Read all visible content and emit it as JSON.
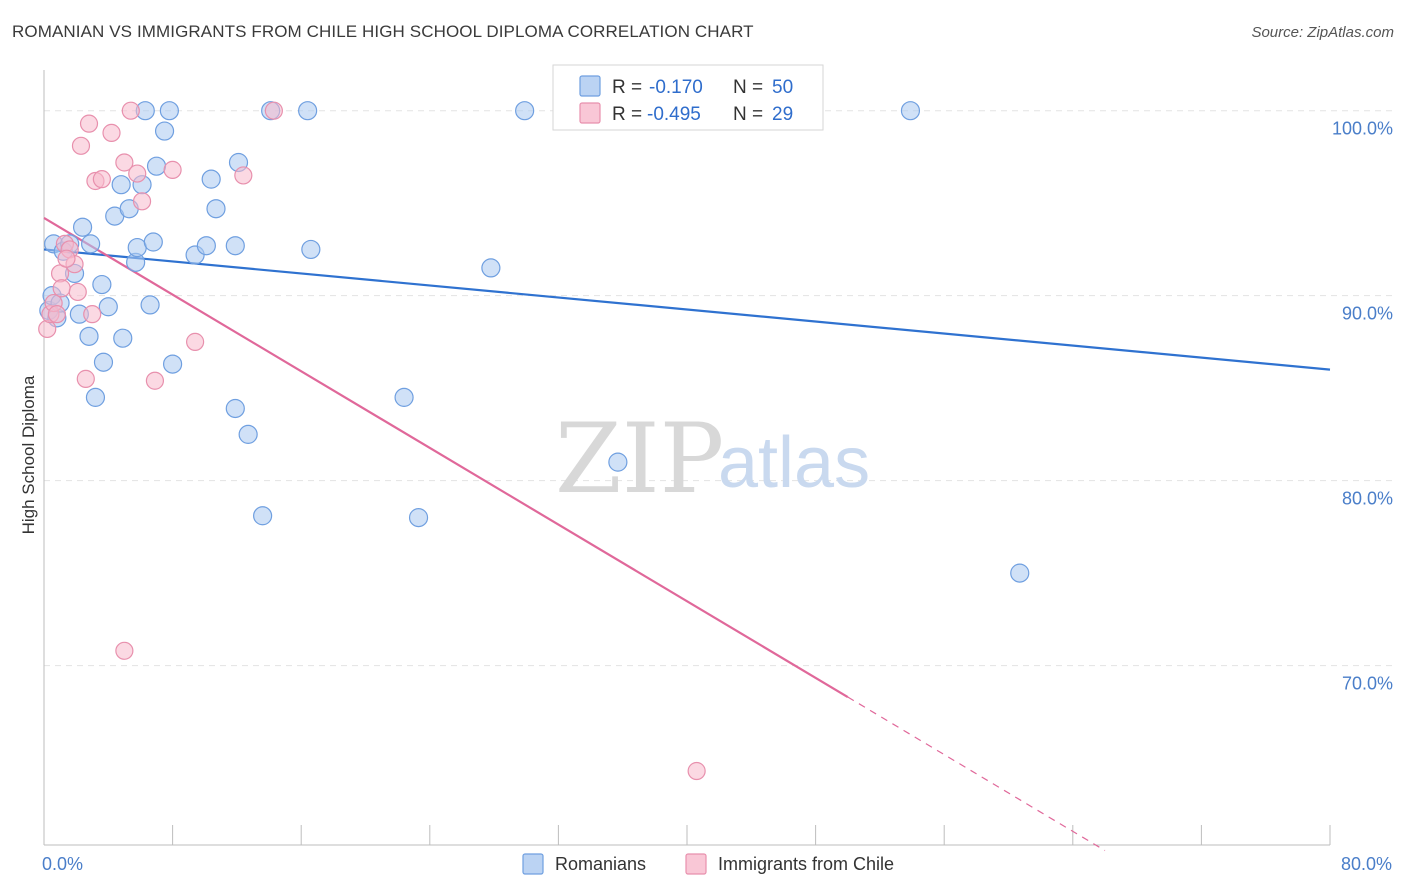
{
  "header": {
    "title": "ROMANIAN VS IMMIGRANTS FROM CHILE HIGH SCHOOL DIPLOMA CORRELATION CHART",
    "source": "Source: ZipAtlas.com"
  },
  "watermark": {
    "zip": "ZIP",
    "atlas": "atlas"
  },
  "legend": {
    "r_label": "R =",
    "n_label": "N =",
    "rows": [
      {
        "r": "-0.170",
        "n": "50",
        "color": "#aac8f0"
      },
      {
        "r": "-0.495",
        "n": "29",
        "color": "#f7b9cc"
      }
    ]
  },
  "bottom_legend": {
    "items": [
      {
        "label": "Romanians",
        "color": "#aac8f0"
      },
      {
        "label": "Immigrants from Chile",
        "color": "#f7b9cc"
      }
    ]
  },
  "colors": {
    "blue_fill": "#aac8f0",
    "blue_stroke": "#6f9fe0",
    "blue_line": "#2f72d0",
    "pink_fill": "#f7b9cc",
    "pink_stroke": "#e890ad",
    "pink_line": "#e0689a",
    "grid": "#e3e3e3",
    "tick_text": "#4a7ec9"
  },
  "chart_data": {
    "type": "scatter",
    "title": "ROMANIAN VS IMMIGRANTS FROM CHILE HIGH SCHOOL DIPLOMA CORRELATION CHART",
    "xlabel": "",
    "ylabel": "High School Diploma",
    "xlim": [
      0,
      80
    ],
    "ylim": [
      60.3,
      102.2
    ],
    "x_tick_labels": [
      {
        "value": 0,
        "label": "0.0%"
      },
      {
        "value": 80,
        "label": "80.0%"
      }
    ],
    "x_minor_ticks": [
      8,
      16,
      24,
      32,
      40,
      48,
      56,
      64,
      72,
      80
    ],
    "y_ticks": [
      {
        "value": 100,
        "label": "100.0%"
      },
      {
        "value": 90,
        "label": "90.0%"
      },
      {
        "value": 80,
        "label": "80.0%"
      },
      {
        "value": 70,
        "label": "70.0%"
      }
    ],
    "grid": true,
    "series": [
      {
        "name": "Romanians",
        "r": -0.17,
        "n": 50,
        "trend": {
          "x": [
            0,
            80
          ],
          "y": [
            92.5,
            86.0
          ]
        },
        "points": [
          [
            0.3,
            89.2
          ],
          [
            0.5,
            90.0
          ],
          [
            0.8,
            88.8
          ],
          [
            0.6,
            92.8
          ],
          [
            1.2,
            92.4
          ],
          [
            1.6,
            92.8
          ],
          [
            1.9,
            91.2
          ],
          [
            2.4,
            93.7
          ],
          [
            2.2,
            89.0
          ],
          [
            2.9,
            92.8
          ],
          [
            2.8,
            87.8
          ],
          [
            3.2,
            84.5
          ],
          [
            3.6,
            90.6
          ],
          [
            3.7,
            86.4
          ],
          [
            4.4,
            94.3
          ],
          [
            4.8,
            96.0
          ],
          [
            4.9,
            87.7
          ],
          [
            5.3,
            94.7
          ],
          [
            5.7,
            91.8
          ],
          [
            5.8,
            92.6
          ],
          [
            6.1,
            96.0
          ],
          [
            6.3,
            100.0
          ],
          [
            6.6,
            89.5
          ],
          [
            6.8,
            92.9
          ],
          [
            7.0,
            97.0
          ],
          [
            7.5,
            98.9
          ],
          [
            7.8,
            100.0
          ],
          [
            8.0,
            86.3
          ],
          [
            9.4,
            92.2
          ],
          [
            10.1,
            92.7
          ],
          [
            10.4,
            96.3
          ],
          [
            10.7,
            94.7
          ],
          [
            11.9,
            83.9
          ],
          [
            11.9,
            92.7
          ],
          [
            12.1,
            97.2
          ],
          [
            12.7,
            82.5
          ],
          [
            13.6,
            78.1
          ],
          [
            14.1,
            100.0
          ],
          [
            16.4,
            100.0
          ],
          [
            16.6,
            92.5
          ],
          [
            22.4,
            84.5
          ],
          [
            23.3,
            78.0
          ],
          [
            27.8,
            91.5
          ],
          [
            29.9,
            100.0
          ],
          [
            32.4,
            100.0
          ],
          [
            35.7,
            81.0
          ],
          [
            53.9,
            100.0
          ],
          [
            60.7,
            75.0
          ],
          [
            1.0,
            89.6
          ],
          [
            4.0,
            89.4
          ]
        ]
      },
      {
        "name": "Immigrants from Chile",
        "r": -0.495,
        "n": 29,
        "trend": {
          "x": [
            0,
            50
          ],
          "y": [
            94.2,
            68.3
          ]
        },
        "trend_dashed": {
          "x": [
            50,
            66
          ],
          "y": [
            68.3,
            60.0
          ]
        },
        "points": [
          [
            0.2,
            88.2
          ],
          [
            0.4,
            89.0
          ],
          [
            0.6,
            89.6
          ],
          [
            0.8,
            89.0
          ],
          [
            1.0,
            91.2
          ],
          [
            1.1,
            90.4
          ],
          [
            1.3,
            92.8
          ],
          [
            1.6,
            92.5
          ],
          [
            1.9,
            91.7
          ],
          [
            2.1,
            90.2
          ],
          [
            2.3,
            98.1
          ],
          [
            2.6,
            85.5
          ],
          [
            2.8,
            99.3
          ],
          [
            3.0,
            89.0
          ],
          [
            3.2,
            96.2
          ],
          [
            3.6,
            96.3
          ],
          [
            4.2,
            98.8
          ],
          [
            5.0,
            97.2
          ],
          [
            5.0,
            70.8
          ],
          [
            5.4,
            100.0
          ],
          [
            5.8,
            96.6
          ],
          [
            6.1,
            95.1
          ],
          [
            6.9,
            85.4
          ],
          [
            8.0,
            96.8
          ],
          [
            9.4,
            87.5
          ],
          [
            12.4,
            96.5
          ],
          [
            14.3,
            100.0
          ],
          [
            40.6,
            64.3
          ],
          [
            1.4,
            92.0
          ]
        ]
      }
    ]
  }
}
